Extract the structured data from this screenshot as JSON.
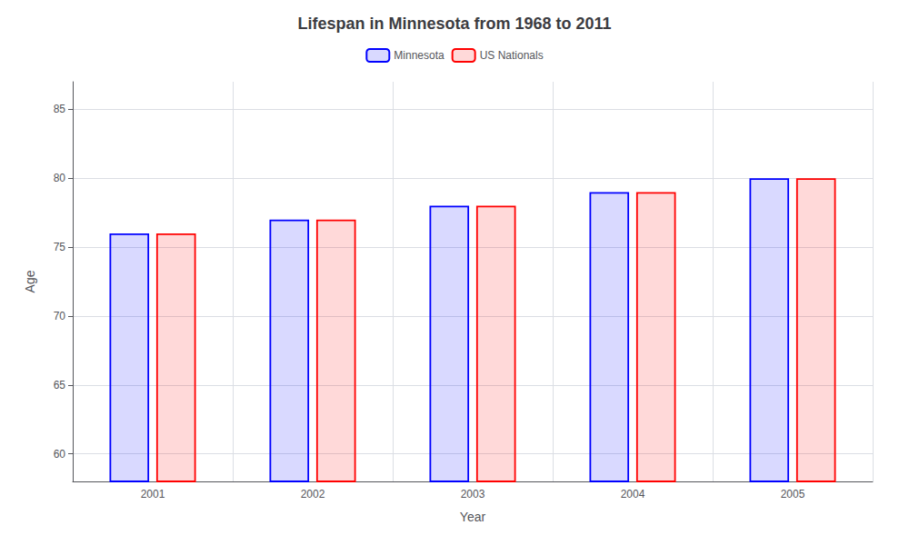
{
  "chart_data": {
    "type": "bar",
    "title": "Lifespan in Minnesota from 1968 to 2011",
    "xlabel": "Year",
    "ylabel": "Age",
    "categories": [
      2001,
      2002,
      2003,
      2004,
      2005
    ],
    "series": [
      {
        "name": "Minnesota",
        "color": "#0000ff",
        "values": [
          76.0,
          77.0,
          78.0,
          79.0,
          80.0
        ]
      },
      {
        "name": "US Nationals",
        "color": "#ff0000",
        "values": [
          76.0,
          77.0,
          78.0,
          79.0,
          80.0
        ]
      }
    ],
    "ylim": [
      58,
      87
    ],
    "yticks": [
      60,
      65,
      70,
      75,
      80,
      85
    ],
    "grid": true,
    "legend": "top"
  }
}
